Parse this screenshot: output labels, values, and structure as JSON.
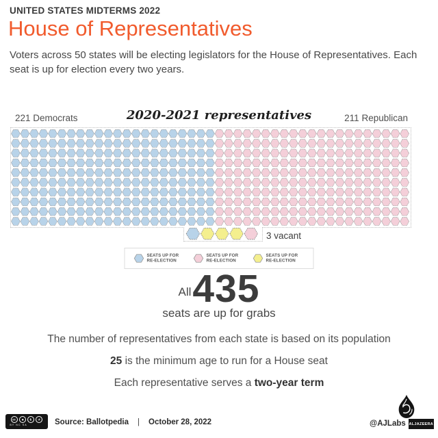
{
  "theme": {
    "accent": "#f15b2d",
    "ink": "#3a3a3a"
  },
  "header": {
    "kicker": "UNITED STATES MIDTERMS 2022",
    "title": "House of Representatives",
    "intro": "Voters across 50 states will be electing legislators for the House of Representatives. Each seat is up for election every two years."
  },
  "chart": {
    "left_label": "221 Democrats",
    "center_title": "2020-2021 representatives",
    "right_label": "211 Republican",
    "vacant_label": "3 vacant",
    "legend": [
      {
        "color": "#b8d3e9",
        "line1": "SEATS UP FOR",
        "line2": "RE-ELECTION"
      },
      {
        "color": "#f4cfd9",
        "line1": "SEATS UP FOR",
        "line2": "RE-ELECTION"
      },
      {
        "color": "#f4ef8e",
        "line1": "SEATS UP FOR",
        "line2": "RE-ELECTION"
      }
    ]
  },
  "chart_data": {
    "type": "pie",
    "subtype": "hexagon-waffle-seat-chart",
    "title": "2020-2021 representatives",
    "categories": [
      "Democrats",
      "Republican",
      "Vacant"
    ],
    "values": [
      221,
      211,
      3
    ],
    "colors": [
      "#b8d3e9",
      "#f4cfd9",
      "#f4ef8e"
    ],
    "total": 435,
    "legend_label": "SEATS UP FOR RE-ELECTION",
    "grid": {
      "rows": 10,
      "cols": 43,
      "dem_cols": 22,
      "overflow_row": [
        "dem",
        "vacant",
        "vacant",
        "vacant",
        "rep"
      ]
    }
  },
  "big_stat": {
    "prefix": "All",
    "number": "435",
    "suffix": "seats are up for grabs"
  },
  "facts": [
    {
      "pre": "The number of representatives from each state is based on its population",
      "bold": "",
      "post": ""
    },
    {
      "pre": "",
      "bold": "25",
      "post": " is the minimum age to run for a House seat"
    },
    {
      "pre": "Each representative serves a ",
      "bold": "two-year term",
      "post": ""
    }
  ],
  "footer": {
    "cc_icons": [
      "cc",
      "☻",
      "$",
      "↺"
    ],
    "cc_labels": "BY NC SA",
    "source": "Source:  Ballotpedia",
    "separator": "|",
    "date": "October 28, 2022",
    "credit": "@AJLabs",
    "brand": "ALJAZEERA"
  }
}
